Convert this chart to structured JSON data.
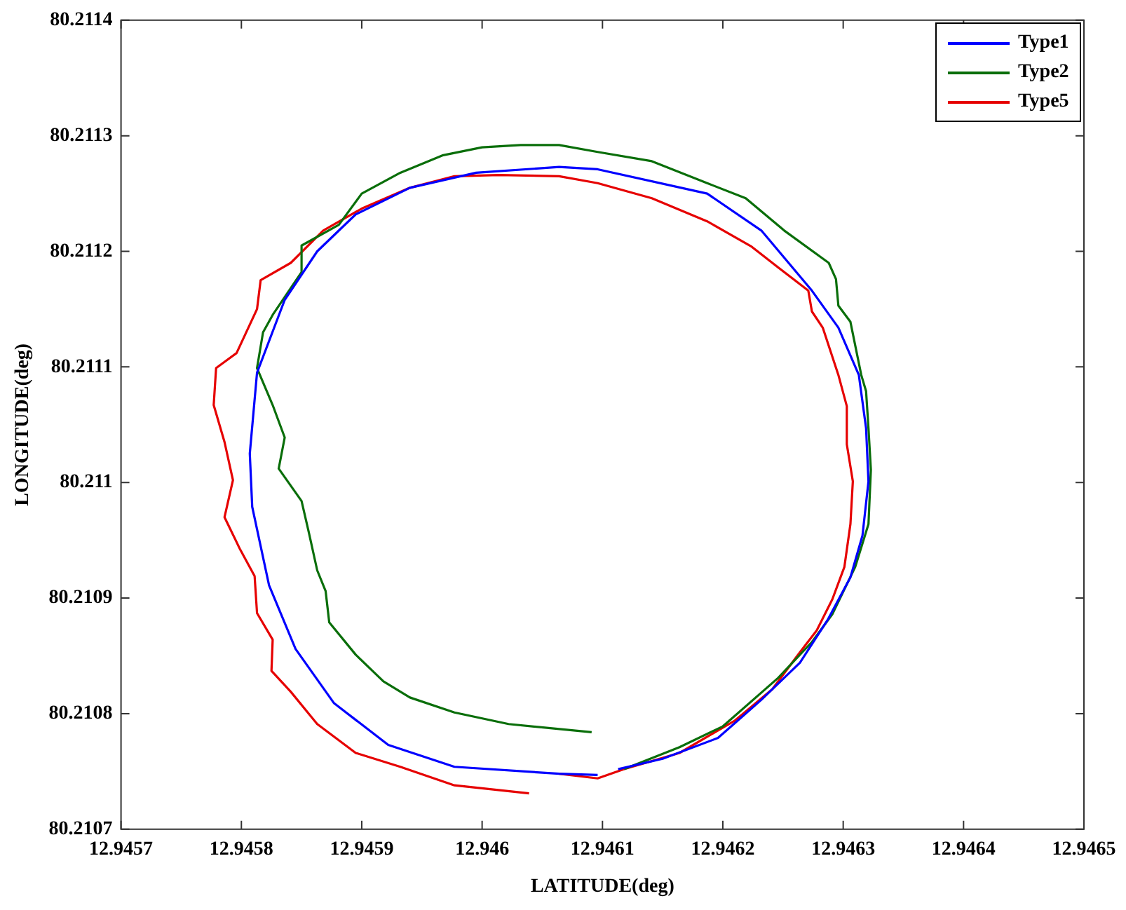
{
  "chart_data": {
    "type": "line",
    "xlabel": "LATITUDE(deg)",
    "ylabel": "LONGITUDE(deg)",
    "xlim": [
      12.9457,
      12.9465
    ],
    "xticks": [
      12.9457,
      12.9458,
      12.9459,
      12.946,
      12.9461,
      12.9462,
      12.9463,
      12.9464,
      12.9465
    ],
    "ylim": [
      80.2107,
      80.2114
    ],
    "yticks": [
      80.2107,
      80.2108,
      80.2109,
      80.211,
      80.2111,
      80.2112,
      80.2113,
      80.2114
    ],
    "grid": false,
    "legend": "top right",
    "marker": "none",
    "line_style": "solid",
    "series": [
      {
        "name": "Type1",
        "color": "#0000ff",
        "x": [
          12.946096,
          12.946064,
          12.945977,
          12.945922,
          12.945877,
          12.945845,
          12.945823,
          12.945809,
          12.945807,
          12.945813,
          12.945836,
          12.945863,
          12.945895,
          12.94594,
          12.945995,
          12.946064,
          12.946096,
          12.946187,
          12.946232,
          12.946274,
          12.946296,
          12.946313,
          12.946319,
          12.946321,
          12.946316,
          12.946306,
          12.946287,
          12.946264,
          12.946232,
          12.946196,
          12.94615,
          12.946113
        ],
        "values": [
          80.210747,
          80.210748,
          80.210754,
          80.210773,
          80.210809,
          80.210856,
          80.210911,
          80.210979,
          80.211025,
          80.211095,
          80.211158,
          80.2112,
          80.211232,
          80.211255,
          80.211268,
          80.211273,
          80.211271,
          80.21125,
          80.211218,
          80.211166,
          80.211134,
          80.211093,
          80.211047,
          80.211001,
          80.210954,
          80.210918,
          80.210881,
          80.210844,
          80.210812,
          80.210779,
          80.210761,
          80.210752
        ]
      },
      {
        "name": "Type2",
        "color": "#0a6e0a",
        "x": [
          12.946091,
          12.946022,
          12.945977,
          12.94594,
          12.945918,
          12.945895,
          12.945873,
          12.94587,
          12.945863,
          12.945856,
          12.94585,
          12.945831,
          12.945836,
          12.945826,
          12.945813,
          12.945818,
          12.945826,
          12.94585,
          12.94585,
          12.945881,
          12.9459,
          12.945932,
          12.945967,
          12.946,
          12.946032,
          12.946064,
          12.946096,
          12.946141,
          12.946187,
          12.946219,
          12.946251,
          12.946288,
          12.946294,
          12.946296,
          12.946306,
          12.946315,
          12.946319,
          12.946321,
          12.946323,
          12.946321,
          12.94631,
          12.946291,
          12.946274,
          12.946246,
          12.9462,
          12.946164,
          12.946118
        ],
        "values": [
          80.210784,
          80.210791,
          80.210801,
          80.210814,
          80.210828,
          80.210851,
          80.210879,
          80.210906,
          80.210924,
          80.210957,
          80.210984,
          80.211012,
          80.211039,
          80.211067,
          80.211099,
          80.21113,
          80.211145,
          80.211182,
          80.211205,
          80.211223,
          80.21125,
          80.211268,
          80.211283,
          80.21129,
          80.211292,
          80.211292,
          80.211286,
          80.211278,
          80.211259,
          80.211246,
          80.211218,
          80.21119,
          80.211176,
          80.211153,
          80.211139,
          80.211093,
          80.211079,
          80.211047,
          80.211011,
          80.210964,
          80.210927,
          80.210886,
          80.210862,
          80.210831,
          80.210789,
          80.210771,
          80.210752
        ]
      },
      {
        "name": "Type5",
        "color": "#e60000",
        "x": [
          12.946039,
          12.945977,
          12.945932,
          12.945895,
          12.945863,
          12.945841,
          12.945825,
          12.945826,
          12.945813,
          12.945811,
          12.945799,
          12.945786,
          12.945793,
          12.945786,
          12.945777,
          12.945779,
          12.945796,
          12.945813,
          12.945816,
          12.945841,
          12.945868,
          12.9459,
          12.94594,
          12.945977,
          12.946014,
          12.946064,
          12.946096,
          12.946141,
          12.946187,
          12.946224,
          12.946246,
          12.946271,
          12.946274,
          12.946283,
          12.946296,
          12.946303,
          12.946303,
          12.946308,
          12.946306,
          12.946301,
          12.946291,
          12.946278,
          12.946264,
          12.946241,
          12.94621,
          12.946164,
          12.946118,
          12.946096,
          12.946064
        ],
        "values": [
          80.210731,
          80.210738,
          80.210754,
          80.210766,
          80.210791,
          80.210819,
          80.210837,
          80.210864,
          80.210887,
          80.210919,
          80.210942,
          80.21097,
          80.211002,
          80.211035,
          80.211067,
          80.211099,
          80.211112,
          80.21115,
          80.211175,
          80.21119,
          80.211218,
          80.211237,
          80.211255,
          80.211265,
          80.211266,
          80.211265,
          80.211259,
          80.211246,
          80.211226,
          80.211204,
          80.211186,
          80.211166,
          80.211148,
          80.211134,
          80.211093,
          80.211066,
          80.211033,
          80.211001,
          80.210964,
          80.210927,
          80.210899,
          80.210872,
          80.210853,
          80.210821,
          80.210794,
          80.210766,
          80.210752,
          80.210744,
          80.210748
        ]
      }
    ]
  }
}
